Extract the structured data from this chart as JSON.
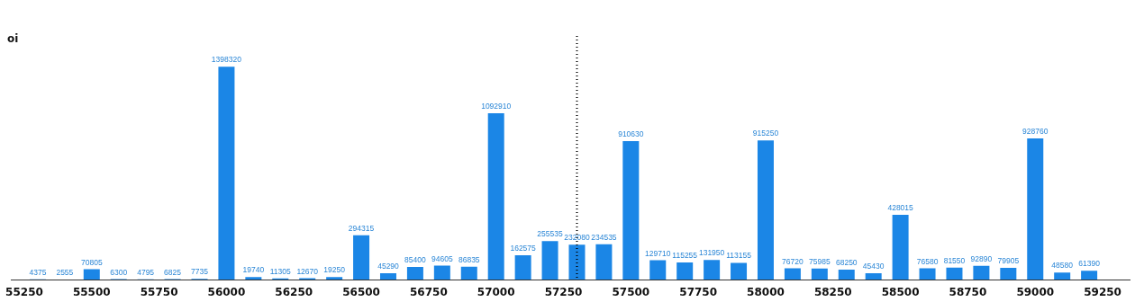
{
  "chart_data": {
    "type": "bar",
    "ylabel": "oi",
    "x": [
      55300,
      55400,
      55500,
      55600,
      55700,
      55800,
      55900,
      56000,
      56100,
      56200,
      56300,
      56400,
      56500,
      56600,
      56700,
      56800,
      56900,
      57000,
      57100,
      57200,
      57300,
      57400,
      57500,
      57600,
      57700,
      57800,
      57900,
      58000,
      58100,
      58200,
      58300,
      58400,
      58500,
      58600,
      58700,
      58800,
      58900,
      59000,
      59100,
      59200
    ],
    "values": [
      4375,
      2555,
      70805,
      6300,
      4795,
      6825,
      7735,
      1398320,
      19740,
      11305,
      12670,
      19250,
      294315,
      45290,
      85400,
      94605,
      86835,
      1092910,
      162575,
      255535,
      232080,
      234535,
      910630,
      129710,
      115255,
      131950,
      113155,
      915250,
      76720,
      75985,
      68250,
      45430,
      428015,
      76580,
      81550,
      92890,
      79905,
      928760,
      48580,
      61390
    ],
    "color": "#1b86e6",
    "data_labels": true,
    "xlim": [
      55200,
      59350
    ],
    "xticks": [
      55250,
      55500,
      55750,
      56000,
      56250,
      56500,
      56750,
      57000,
      57250,
      57500,
      57750,
      58000,
      58250,
      58500,
      58750,
      59000,
      59250
    ],
    "tick_labels": "x",
    "legend": false,
    "ref_lines": [
      {
        "axis": "x",
        "value": 57300,
        "color": "#000000",
        "line_style": "dotted"
      }
    ]
  }
}
